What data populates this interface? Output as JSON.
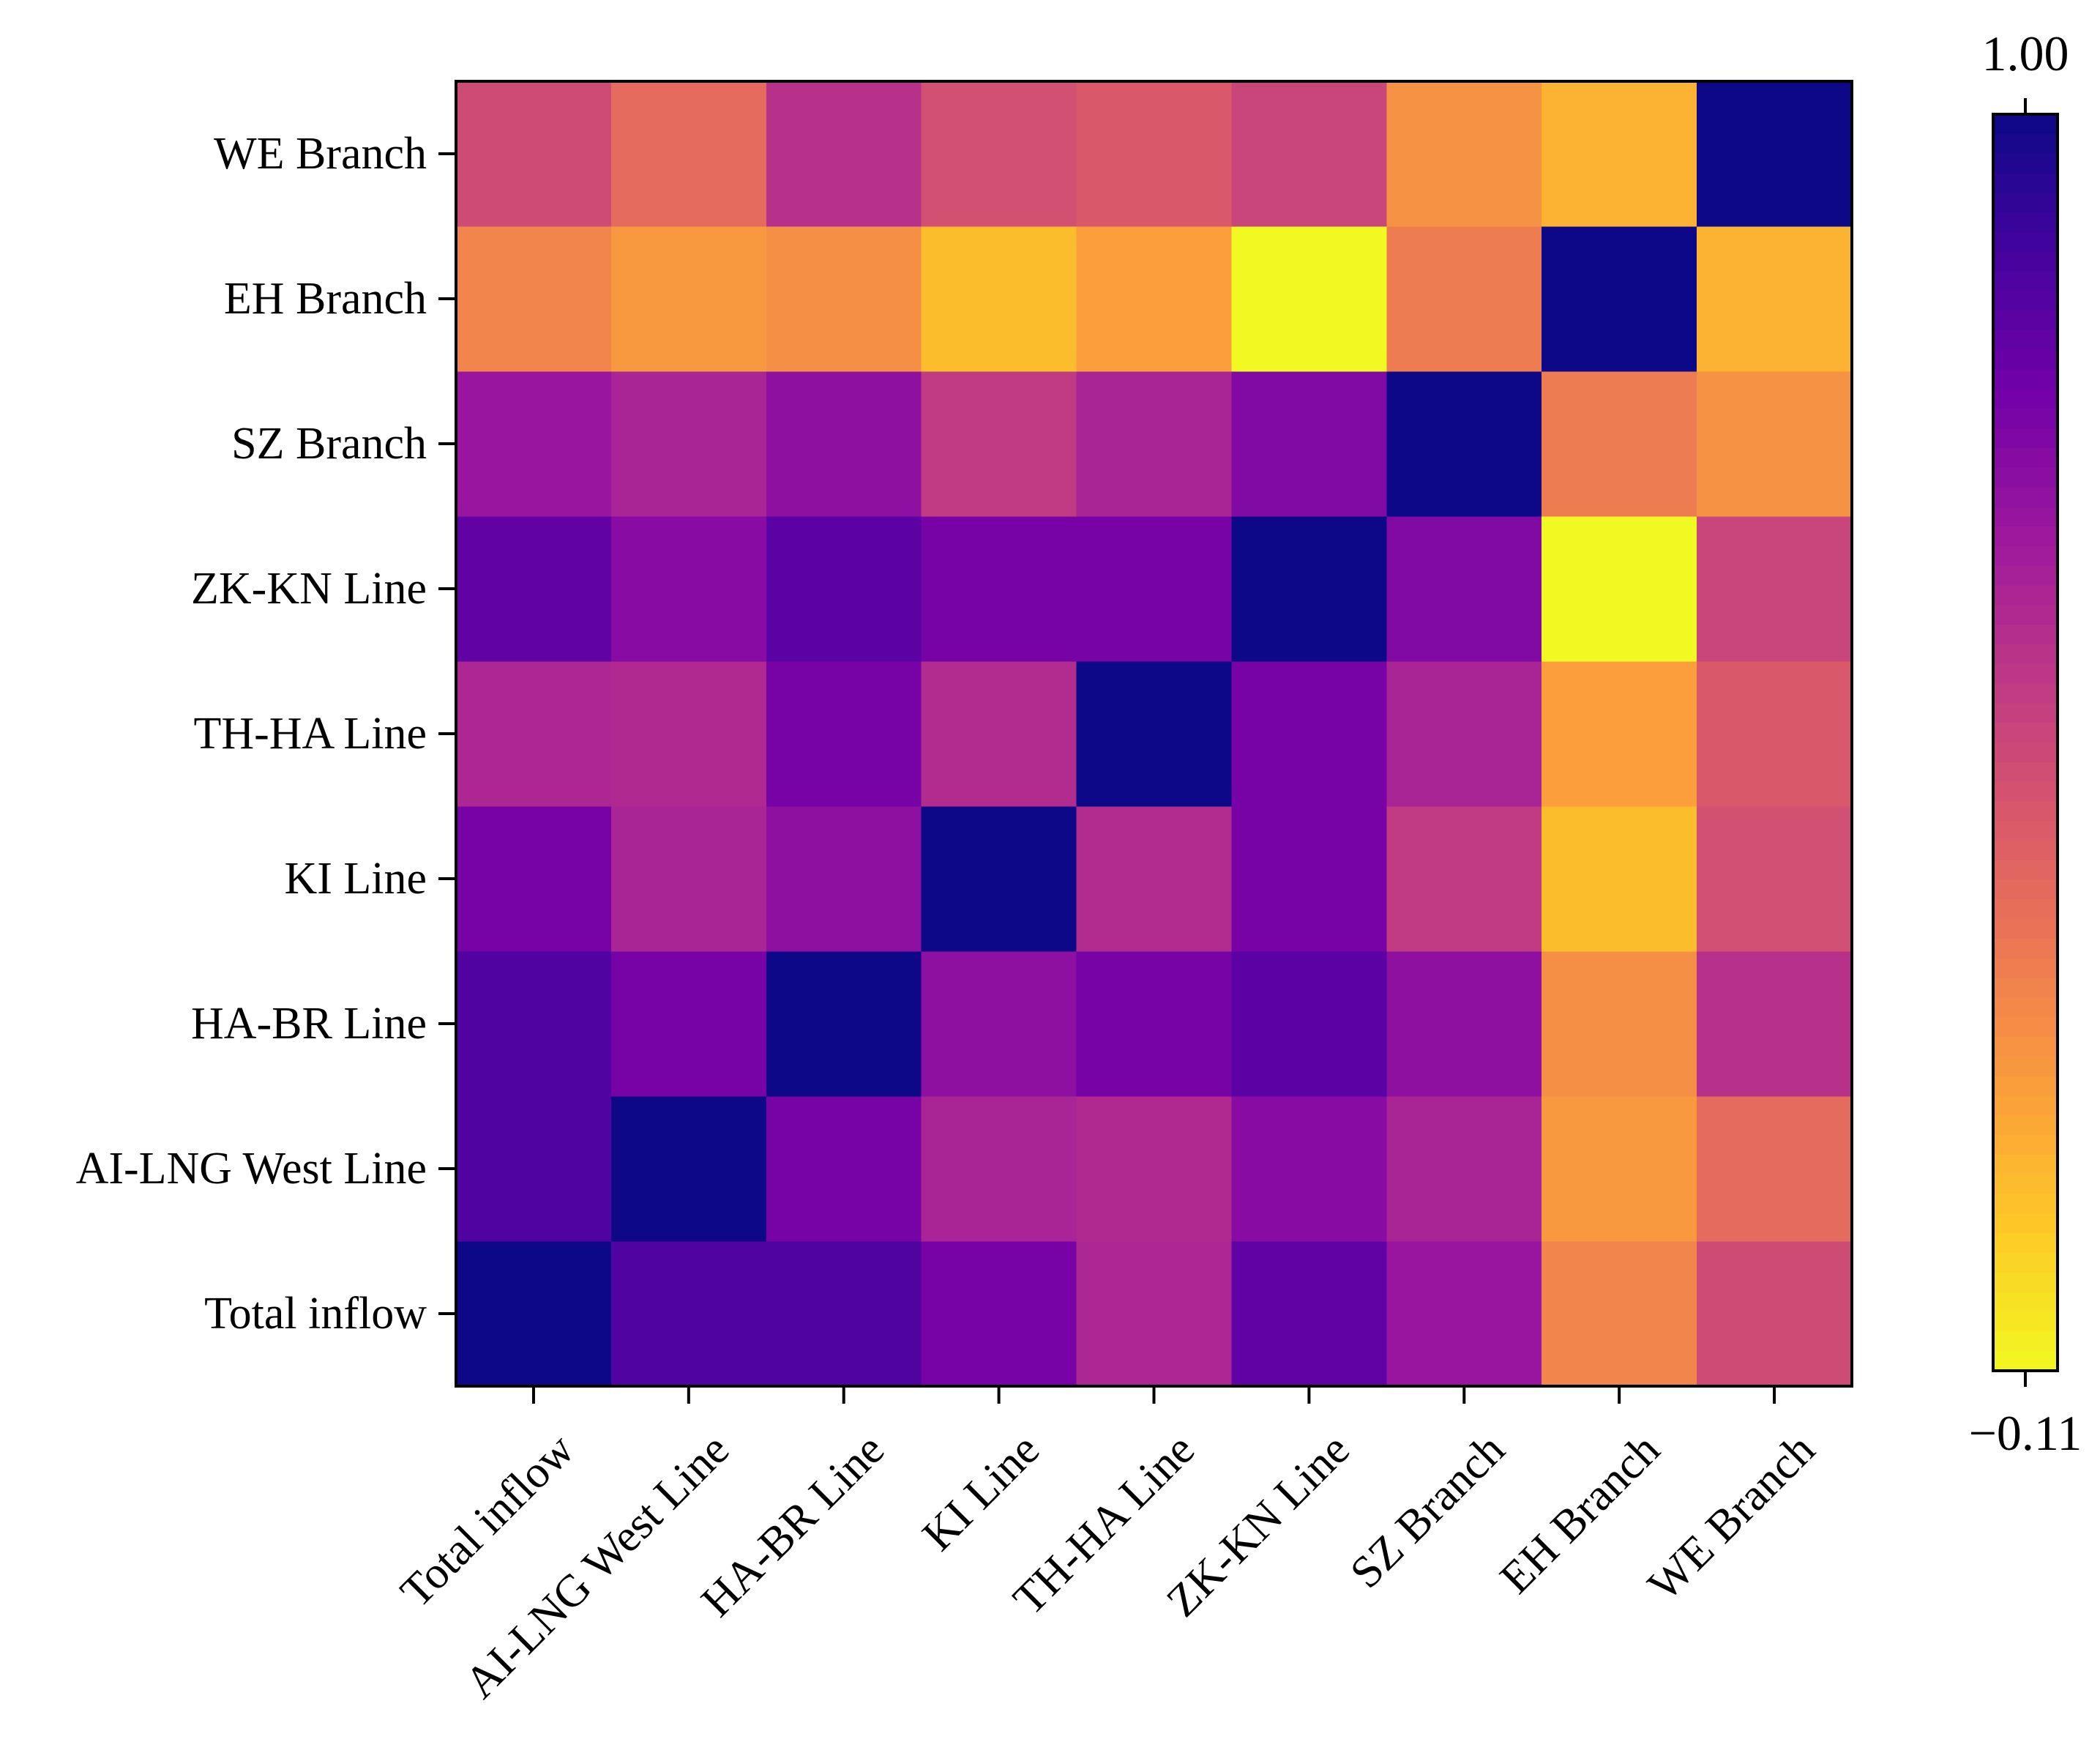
{
  "chart_data": {
    "type": "heatmap",
    "title": "",
    "xlabel": "",
    "ylabel": "",
    "colormap": "plasma_r",
    "x_categories": [
      "Total inflow",
      "AI-LNG West Line",
      "HA-BR Line",
      "KI Line",
      "TH-HA Line",
      "ZK-KN Line",
      "SZ Branch",
      "EH Branch",
      "WE Branch"
    ],
    "y_categories": [
      "Total inflow",
      "AI-LNG West Line",
      "HA-BR Line",
      "KI Line",
      "TH-HA Line",
      "ZK-KN Line",
      "SZ Branch",
      "EH Branch",
      "WE Branch"
    ],
    "values": [
      [
        1.0,
        0.85,
        0.85,
        0.74,
        0.57,
        0.8,
        0.64,
        0.22,
        0.43
      ],
      [
        0.85,
        1.0,
        0.74,
        0.58,
        0.56,
        0.69,
        0.58,
        0.16,
        0.31
      ],
      [
        0.85,
        0.74,
        1.0,
        0.67,
        0.74,
        0.82,
        0.67,
        0.19,
        0.53
      ],
      [
        0.74,
        0.58,
        0.67,
        1.0,
        0.55,
        0.74,
        0.49,
        0.05,
        0.41
      ],
      [
        0.57,
        0.56,
        0.74,
        0.55,
        1.0,
        0.74,
        0.58,
        0.14,
        0.38
      ],
      [
        0.8,
        0.69,
        0.82,
        0.74,
        0.74,
        1.0,
        0.71,
        -0.11,
        0.45
      ],
      [
        0.64,
        0.58,
        0.67,
        0.49,
        0.58,
        0.71,
        1.0,
        0.25,
        0.18
      ],
      [
        0.22,
        0.16,
        0.19,
        0.05,
        0.14,
        -0.11,
        0.25,
        1.0,
        0.08
      ],
      [
        0.43,
        0.31,
        0.53,
        0.41,
        0.38,
        0.45,
        0.18,
        0.08,
        1.0
      ]
    ],
    "colorbar": {
      "min": -0.11,
      "max": 1.0,
      "min_label": "−0.11",
      "max_label": "1.00",
      "colors": [
        "#0d0887",
        "#46039f",
        "#7201a8",
        "#9c179e",
        "#bd3786",
        "#d8576b",
        "#ed7953",
        "#fb9f3a",
        "#fdca26",
        "#f0f921"
      ]
    }
  }
}
